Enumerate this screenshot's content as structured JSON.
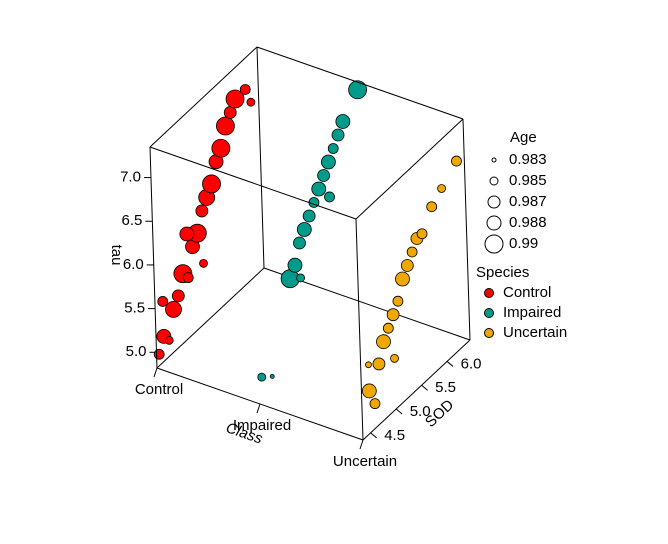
{
  "chart_data": {
    "type": "scatter3d",
    "x_label": "Class",
    "y_label": "SOD",
    "z_label": "tau",
    "categories": [
      "Control",
      "Impaired",
      "Uncertain"
    ],
    "ylim": [
      4.35,
      6.45
    ],
    "yticks": [
      {
        "value": 4.5,
        "label": "4.5"
      },
      {
        "value": 5.0,
        "label": "5.0"
      },
      {
        "value": 5.5,
        "label": "5.5"
      },
      {
        "value": 6.0,
        "label": "6.0"
      }
    ],
    "zlim": [
      4.82,
      7.35
    ],
    "zticks": [
      {
        "value": 5.0,
        "label": "5.0"
      },
      {
        "value": 5.5,
        "label": "5.5"
      },
      {
        "value": 6.0,
        "label": "6.0"
      },
      {
        "value": 6.5,
        "label": "6.5"
      },
      {
        "value": 7.0,
        "label": "7.0"
      }
    ],
    "size_title": "Age",
    "size_ticks": [
      0.983,
      0.985,
      0.987,
      0.988,
      0.99
    ],
    "legend_title": "Species",
    "series": [
      {
        "name": "Control",
        "color": "#ff0000",
        "sod": [
          4.4,
          4.5,
          4.6,
          4.7,
          4.8,
          4.9,
          5.0,
          5.1,
          5.2,
          5.3,
          5.4,
          5.5,
          5.6,
          5.7,
          5.8,
          5.9,
          6.0,
          6.2,
          4.5,
          5.0,
          5.3,
          6.3
        ],
        "tau": [
          4.95,
          5.1,
          5.0,
          5.3,
          5.4,
          5.6,
          5.5,
          5.8,
          5.9,
          6.1,
          6.2,
          6.3,
          6.5,
          6.6,
          6.8,
          6.9,
          7.0,
          7.0,
          5.5,
          6.0,
          5.5,
          6.8
        ],
        "age": [
          0.986,
          0.988,
          0.985,
          0.989,
          0.987,
          0.99,
          0.986,
          0.988,
          0.99,
          0.987,
          0.989,
          0.99,
          0.988,
          0.99,
          0.99,
          0.987,
          0.99,
          0.986,
          0.986,
          0.988,
          0.985,
          0.985
        ]
      },
      {
        "name": "Impaired",
        "color": "#009b8a",
        "sod": [
          4.4,
          4.6,
          5.0,
          5.1,
          5.2,
          5.3,
          5.4,
          5.5,
          5.6,
          5.7,
          5.8,
          5.9,
          6.0,
          6.1,
          6.4,
          5.2,
          5.8
        ],
        "tau": [
          5.1,
          5.0,
          5.9,
          6.0,
          6.2,
          6.3,
          6.4,
          6.5,
          6.6,
          6.7,
          6.8,
          6.9,
          7.0,
          7.1,
          7.3,
          5.8,
          6.4
        ],
        "age": [
          0.985,
          0.983,
          0.99,
          0.988,
          0.987,
          0.988,
          0.987,
          0.986,
          0.988,
          0.987,
          0.988,
          0.986,
          0.987,
          0.988,
          0.99,
          0.985,
          0.986
        ]
      },
      {
        "name": "Uncertain",
        "color": "#f0a800",
        "sod": [
          4.5,
          4.6,
          4.7,
          4.8,
          4.9,
          5.0,
          5.1,
          5.2,
          5.3,
          5.4,
          5.5,
          5.6,
          5.8,
          6.0,
          6.3,
          4.5,
          5.0
        ],
        "tau": [
          5.3,
          5.1,
          5.5,
          5.7,
          5.8,
          5.9,
          6.0,
          6.2,
          6.3,
          6.4,
          6.5,
          6.5,
          6.7,
          6.8,
          6.95,
          5.6,
          5.4
        ],
        "age": [
          0.988,
          0.986,
          0.987,
          0.988,
          0.986,
          0.987,
          0.986,
          0.988,
          0.987,
          0.986,
          0.987,
          0.986,
          0.986,
          0.985,
          0.986,
          0.984,
          0.985
        ]
      }
    ]
  }
}
